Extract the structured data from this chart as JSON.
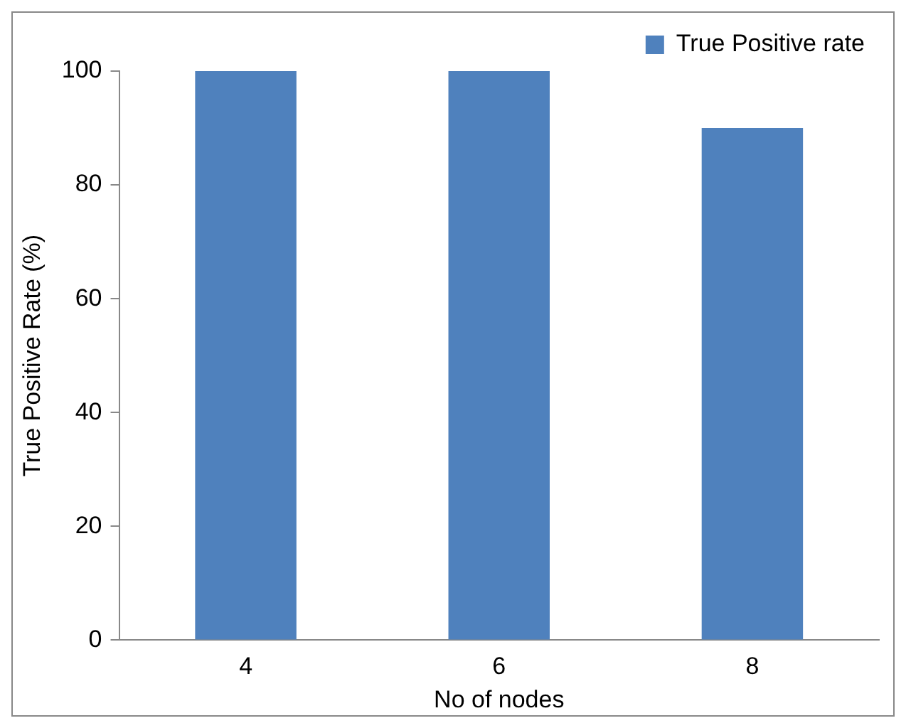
{
  "chart_data": {
    "type": "bar",
    "xlabel": "No of nodes",
    "ylabel": "True Positive Rate (%)",
    "categories": [
      "4",
      "6",
      "8"
    ],
    "series": [
      {
        "name": "True Positive rate",
        "color": "#4f81bd",
        "values": [
          100,
          100,
          90
        ]
      }
    ],
    "ylim": [
      0,
      100
    ],
    "yticks": [
      0,
      20,
      40,
      60,
      80,
      100
    ],
    "grid": false,
    "legend": "top right"
  }
}
